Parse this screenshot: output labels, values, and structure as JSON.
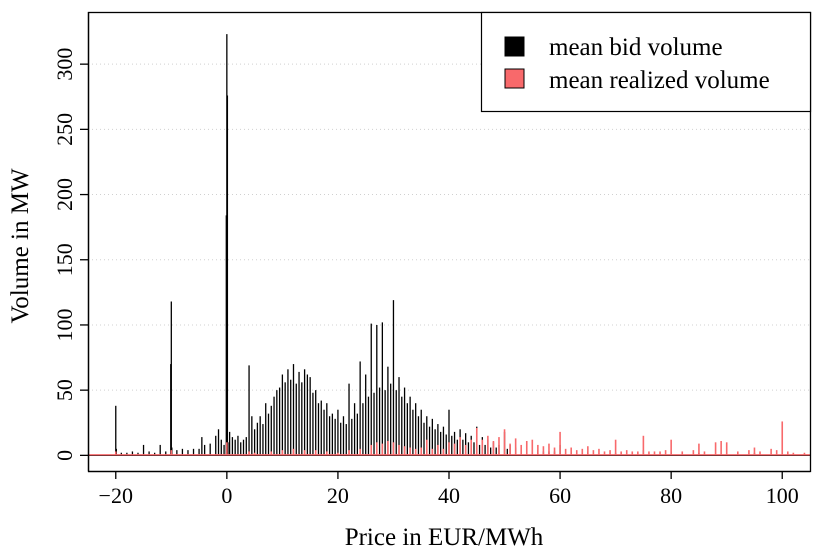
{
  "chart_data": {
    "type": "bar",
    "title": "",
    "xlabel": "Price in EUR/MWh",
    "ylabel": "Volume in MW",
    "xlim": [
      -25,
      105
    ],
    "ylim": [
      -12,
      340
    ],
    "x_ticks": [
      -20,
      0,
      20,
      40,
      60,
      80,
      100
    ],
    "x_tick_labels": [
      "−20",
      "0",
      "20",
      "40",
      "60",
      "80",
      "100"
    ],
    "y_ticks": [
      0,
      50,
      100,
      150,
      200,
      250,
      300
    ],
    "y_tick_labels": [
      "0",
      "50",
      "100",
      "150",
      "200",
      "250",
      "300"
    ],
    "grid": "horizontal dotted",
    "legend_position": "top-right",
    "series": [
      {
        "name": "mean bid volume",
        "color": "#000000",
        "points": [
          [
            -20,
            38
          ],
          [
            -19.9,
            5
          ],
          [
            -19,
            2
          ],
          [
            -18,
            2
          ],
          [
            -17,
            3
          ],
          [
            -16,
            2
          ],
          [
            -15,
            8
          ],
          [
            -14,
            3
          ],
          [
            -13,
            2
          ],
          [
            -12,
            8
          ],
          [
            -11,
            3
          ],
          [
            -10.1,
            70
          ],
          [
            -10,
            118
          ],
          [
            -9.9,
            6
          ],
          [
            -9,
            4
          ],
          [
            -8,
            5
          ],
          [
            -7,
            4
          ],
          [
            -6,
            5
          ],
          [
            -5,
            5
          ],
          [
            -4.5,
            14
          ],
          [
            -4,
            8
          ],
          [
            -3,
            9
          ],
          [
            -2,
            15
          ],
          [
            -1.5,
            20
          ],
          [
            -1,
            12
          ],
          [
            -0.5,
            8
          ],
          [
            -0.1,
            184
          ],
          [
            0,
            323
          ],
          [
            0.1,
            276
          ],
          [
            0.2,
            10
          ],
          [
            0.5,
            18
          ],
          [
            1,
            14
          ],
          [
            1.5,
            12
          ],
          [
            2,
            15
          ],
          [
            2.5,
            10
          ],
          [
            3,
            12
          ],
          [
            3.5,
            14
          ],
          [
            4,
            69
          ],
          [
            4.5,
            30
          ],
          [
            5,
            20
          ],
          [
            5.5,
            25
          ],
          [
            6,
            30
          ],
          [
            6.5,
            24
          ],
          [
            7,
            40
          ],
          [
            7.5,
            32
          ],
          [
            8,
            38
          ],
          [
            8.5,
            45
          ],
          [
            9,
            50
          ],
          [
            9.5,
            52
          ],
          [
            10,
            62
          ],
          [
            10.5,
            56
          ],
          [
            11,
            66
          ],
          [
            11.5,
            58
          ],
          [
            12,
            70
          ],
          [
            12.5,
            55
          ],
          [
            13,
            64
          ],
          [
            13.5,
            56
          ],
          [
            14,
            66
          ],
          [
            14.5,
            62
          ],
          [
            15,
            60
          ],
          [
            15.5,
            48
          ],
          [
            16,
            50
          ],
          [
            16.5,
            40
          ],
          [
            17,
            42
          ],
          [
            17.5,
            35
          ],
          [
            18,
            40
          ],
          [
            18.5,
            30
          ],
          [
            19,
            32
          ],
          [
            19.5,
            28
          ],
          [
            20,
            35
          ],
          [
            20.5,
            25
          ],
          [
            21,
            30
          ],
          [
            21.5,
            24
          ],
          [
            22,
            55
          ],
          [
            22.5,
            28
          ],
          [
            23,
            40
          ],
          [
            23.5,
            32
          ],
          [
            24,
            72
          ],
          [
            24.5,
            40
          ],
          [
            25,
            62
          ],
          [
            25.5,
            45
          ],
          [
            26,
            101
          ],
          [
            26.5,
            48
          ],
          [
            27,
            100
          ],
          [
            27.5,
            52
          ],
          [
            28,
            102
          ],
          [
            28.5,
            50
          ],
          [
            29,
            68
          ],
          [
            29.5,
            55
          ],
          [
            30,
            119
          ],
          [
            30.5,
            50
          ],
          [
            31,
            60
          ],
          [
            31.5,
            45
          ],
          [
            32,
            52
          ],
          [
            32.5,
            40
          ],
          [
            33,
            45
          ],
          [
            33.5,
            35
          ],
          [
            34,
            40
          ],
          [
            34.5,
            30
          ],
          [
            35,
            35
          ],
          [
            35.5,
            25
          ],
          [
            36,
            30
          ],
          [
            36.5,
            22
          ],
          [
            37,
            28
          ],
          [
            37.5,
            20
          ],
          [
            38,
            24
          ],
          [
            38.5,
            18
          ],
          [
            39,
            22
          ],
          [
            39.5,
            16
          ],
          [
            40,
            35
          ],
          [
            40.5,
            15
          ],
          [
            41,
            18
          ],
          [
            41.5,
            12
          ],
          [
            42,
            20
          ],
          [
            42.5,
            12
          ],
          [
            43,
            17
          ],
          [
            43.5,
            10
          ],
          [
            44,
            15
          ],
          [
            44.5,
            10
          ],
          [
            45,
            22
          ],
          [
            45.5,
            8
          ],
          [
            46,
            14
          ],
          [
            46.5,
            8
          ],
          [
            47,
            12
          ],
          [
            47.5,
            6
          ],
          [
            48,
            10
          ],
          [
            48.5,
            6
          ],
          [
            49,
            8
          ],
          [
            50,
            18
          ],
          [
            50.5,
            5
          ],
          [
            51,
            8
          ],
          [
            52,
            6
          ],
          [
            53,
            5
          ],
          [
            54,
            4
          ],
          [
            55,
            10
          ],
          [
            56,
            4
          ],
          [
            57,
            3
          ],
          [
            58,
            3
          ],
          [
            59,
            3
          ],
          [
            60,
            8
          ],
          [
            62,
            3
          ],
          [
            65,
            3
          ],
          [
            70,
            2
          ],
          [
            75,
            4
          ],
          [
            80,
            3
          ],
          [
            85,
            2
          ],
          [
            90,
            3
          ],
          [
            95,
            2
          ],
          [
            100,
            3
          ]
        ]
      },
      {
        "name": "mean realized volume",
        "color": "#f8696b",
        "points": [
          [
            -20,
            3
          ],
          [
            -10,
            4
          ],
          [
            0,
            10
          ],
          [
            4,
            3
          ],
          [
            5,
            2
          ],
          [
            8,
            3
          ],
          [
            10,
            4
          ],
          [
            12,
            5
          ],
          [
            14,
            4
          ],
          [
            16,
            4
          ],
          [
            18,
            3
          ],
          [
            20,
            2
          ],
          [
            22,
            4
          ],
          [
            24,
            5
          ],
          [
            26,
            8
          ],
          [
            27,
            10
          ],
          [
            28,
            9
          ],
          [
            29,
            11
          ],
          [
            30,
            10
          ],
          [
            31,
            8
          ],
          [
            32,
            7
          ],
          [
            33,
            6
          ],
          [
            34,
            5
          ],
          [
            35,
            6
          ],
          [
            36,
            12
          ],
          [
            37,
            5
          ],
          [
            38,
            8
          ],
          [
            39,
            5
          ],
          [
            40,
            10
          ],
          [
            41,
            9
          ],
          [
            42,
            14
          ],
          [
            43,
            8
          ],
          [
            44,
            12
          ],
          [
            45,
            21
          ],
          [
            46,
            12
          ],
          [
            47,
            15
          ],
          [
            48,
            11
          ],
          [
            49,
            14
          ],
          [
            50,
            20
          ],
          [
            51,
            9
          ],
          [
            52,
            13
          ],
          [
            53,
            8
          ],
          [
            54,
            11
          ],
          [
            55,
            12
          ],
          [
            56,
            8
          ],
          [
            57,
            7
          ],
          [
            58,
            9
          ],
          [
            59,
            6
          ],
          [
            60,
            18
          ],
          [
            61,
            5
          ],
          [
            62,
            6
          ],
          [
            63,
            4
          ],
          [
            64,
            5
          ],
          [
            65,
            7
          ],
          [
            66,
            4
          ],
          [
            67,
            5
          ],
          [
            68,
            3
          ],
          [
            69,
            4
          ],
          [
            70,
            12
          ],
          [
            71,
            3
          ],
          [
            72,
            4
          ],
          [
            73,
            3
          ],
          [
            74,
            3
          ],
          [
            75,
            15
          ],
          [
            76,
            3
          ],
          [
            77,
            3
          ],
          [
            78,
            3
          ],
          [
            79,
            4
          ],
          [
            80,
            12
          ],
          [
            82,
            3
          ],
          [
            84,
            4
          ],
          [
            85,
            9
          ],
          [
            86,
            3
          ],
          [
            88,
            10
          ],
          [
            89,
            11
          ],
          [
            90,
            10
          ],
          [
            92,
            3
          ],
          [
            94,
            4
          ],
          [
            95,
            6
          ],
          [
            96,
            3
          ],
          [
            98,
            5
          ],
          [
            99,
            4
          ],
          [
            100,
            26
          ],
          [
            101,
            3
          ],
          [
            102,
            2
          ],
          [
            104,
            2
          ]
        ]
      }
    ]
  }
}
